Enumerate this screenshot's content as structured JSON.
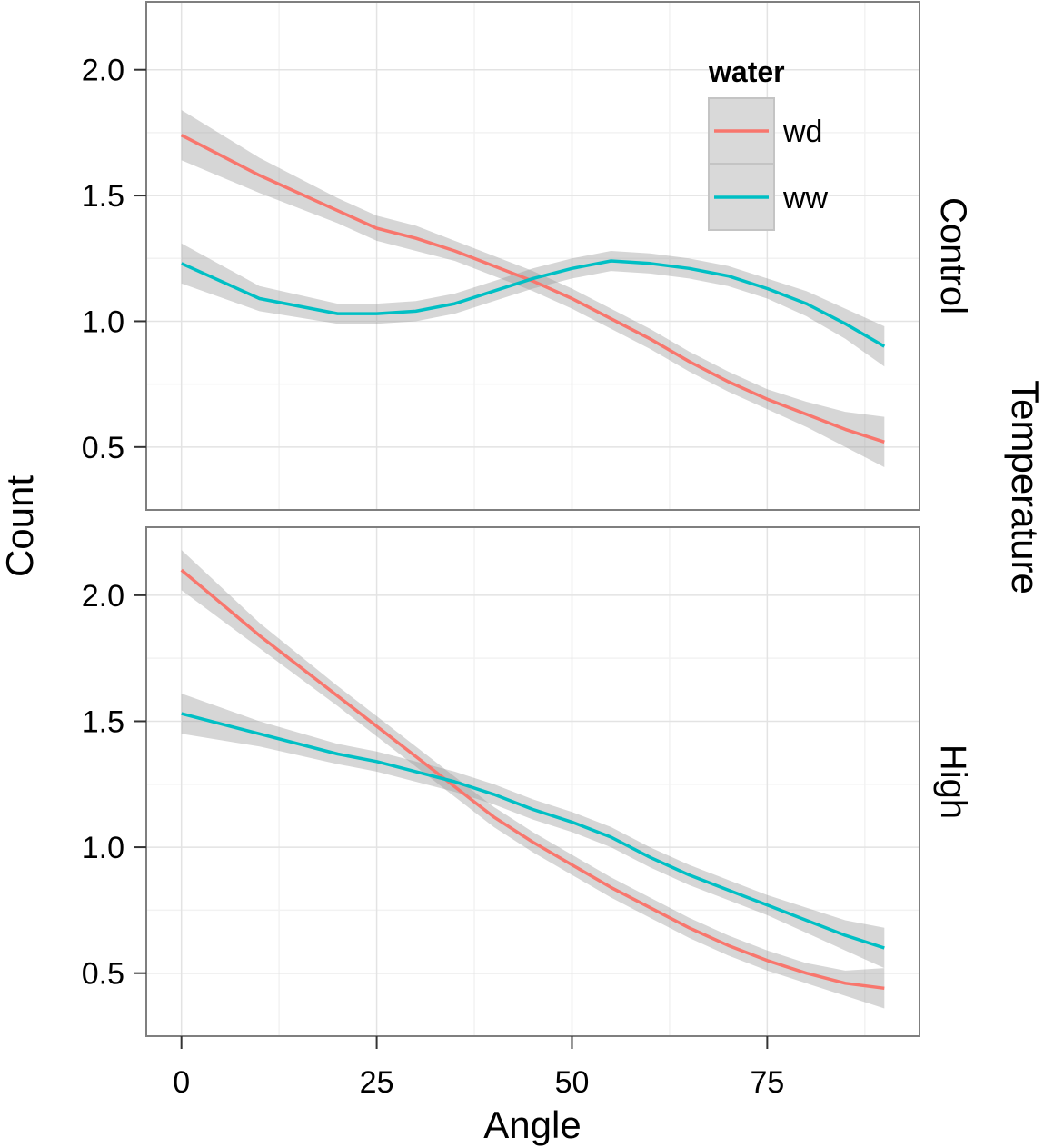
{
  "chart_data": {
    "type": "line",
    "xlabel": "Angle",
    "ylabel": "Count",
    "facet_label": "Temperature",
    "legend": {
      "title": "water",
      "position": "top-right",
      "entries": [
        {
          "name": "wd",
          "color": "#F8766D"
        },
        {
          "name": "ww",
          "color": "#00BFC4"
        }
      ]
    },
    "xlim": [
      -4.5,
      94.5
    ],
    "ylim": [
      0.25,
      2.27
    ],
    "x_ticks": [
      0,
      25,
      50,
      75
    ],
    "x_tick_labels": [
      "0",
      "25",
      "50",
      "75"
    ],
    "y_ticks": [
      0.5,
      1.0,
      1.5,
      2.0
    ],
    "y_tick_labels": [
      "0.5",
      "1.0",
      "1.5",
      "2.0"
    ],
    "grid": true,
    "confidence_band_color": "#999999",
    "panels": [
      {
        "strip": "Control",
        "series": [
          {
            "name": "wd",
            "color": "#F8766D",
            "x": [
              0,
              10,
              20,
              25,
              30,
              35,
              40,
              45,
              50,
              55,
              60,
              65,
              70,
              75,
              80,
              85,
              90
            ],
            "y": [
              1.74,
              1.58,
              1.44,
              1.37,
              1.33,
              1.28,
              1.22,
              1.16,
              1.09,
              1.01,
              0.93,
              0.84,
              0.76,
              0.69,
              0.63,
              0.57,
              0.52
            ],
            "band": [
              0.1,
              0.07,
              0.05,
              0.05,
              0.05,
              0.04,
              0.04,
              0.04,
              0.04,
              0.04,
              0.04,
              0.04,
              0.04,
              0.04,
              0.05,
              0.07,
              0.1
            ]
          },
          {
            "name": "ww",
            "color": "#00BFC4",
            "x": [
              0,
              10,
              20,
              25,
              30,
              35,
              40,
              45,
              50,
              55,
              60,
              65,
              70,
              75,
              80,
              85,
              90
            ],
            "y": [
              1.23,
              1.09,
              1.03,
              1.03,
              1.04,
              1.07,
              1.12,
              1.17,
              1.21,
              1.24,
              1.23,
              1.21,
              1.18,
              1.13,
              1.07,
              0.99,
              0.9
            ],
            "band": [
              0.08,
              0.05,
              0.04,
              0.04,
              0.04,
              0.04,
              0.04,
              0.04,
              0.04,
              0.04,
              0.04,
              0.04,
              0.04,
              0.04,
              0.05,
              0.06,
              0.08
            ]
          }
        ]
      },
      {
        "strip": "High",
        "series": [
          {
            "name": "wd",
            "color": "#F8766D",
            "x": [
              0,
              10,
              20,
              25,
              30,
              35,
              40,
              45,
              50,
              55,
              60,
              65,
              70,
              75,
              80,
              85,
              90
            ],
            "y": [
              2.1,
              1.84,
              1.6,
              1.48,
              1.36,
              1.24,
              1.12,
              1.02,
              0.93,
              0.84,
              0.76,
              0.68,
              0.61,
              0.55,
              0.5,
              0.46,
              0.44
            ],
            "band": [
              0.08,
              0.05,
              0.04,
              0.04,
              0.04,
              0.04,
              0.04,
              0.04,
              0.04,
              0.04,
              0.04,
              0.04,
              0.04,
              0.04,
              0.04,
              0.05,
              0.08
            ]
          },
          {
            "name": "ww",
            "color": "#00BFC4",
            "x": [
              0,
              10,
              20,
              25,
              30,
              35,
              40,
              45,
              50,
              55,
              60,
              65,
              70,
              75,
              80,
              85,
              90
            ],
            "y": [
              1.53,
              1.45,
              1.37,
              1.34,
              1.3,
              1.26,
              1.21,
              1.15,
              1.1,
              1.04,
              0.96,
              0.89,
              0.83,
              0.77,
              0.71,
              0.65,
              0.6
            ],
            "band": [
              0.08,
              0.05,
              0.04,
              0.04,
              0.04,
              0.04,
              0.04,
              0.04,
              0.04,
              0.04,
              0.04,
              0.04,
              0.04,
              0.04,
              0.05,
              0.06,
              0.08
            ]
          }
        ]
      }
    ]
  }
}
